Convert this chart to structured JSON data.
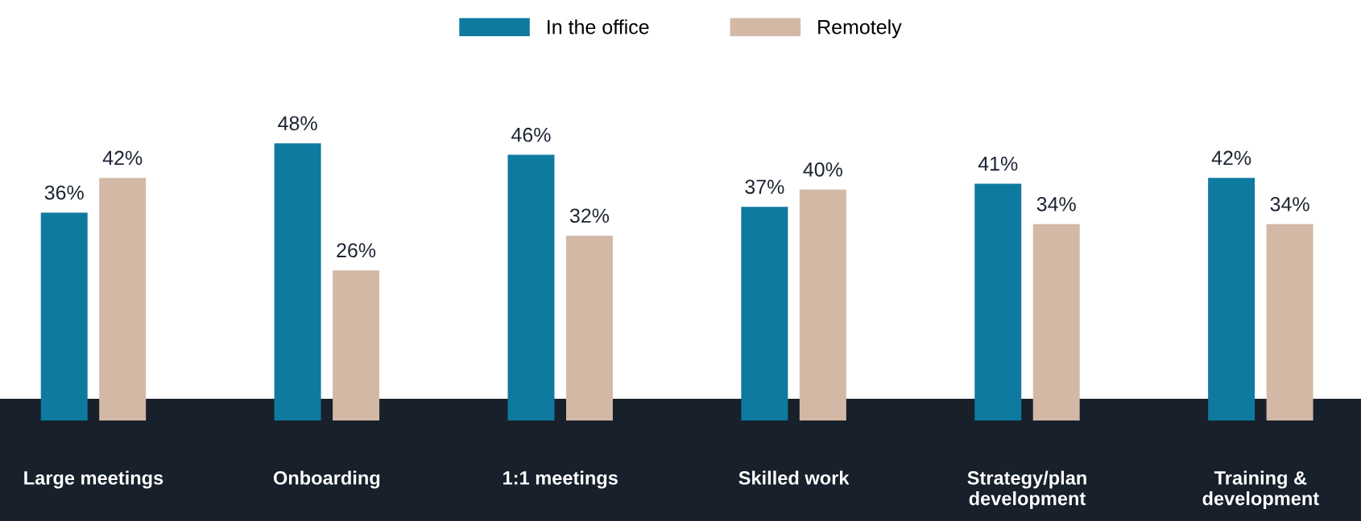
{
  "chart_data": {
    "type": "bar",
    "categories": [
      "Large meetings",
      "Onboarding",
      "1:1 meetings",
      "Skilled work",
      "Strategy/plan\ndevelopment",
      "Training &\ndevelopment"
    ],
    "series": [
      {
        "name": "In the office",
        "color": "#0e7aa0",
        "values": [
          36,
          48,
          46,
          37,
          41,
          42
        ],
        "value_labels": [
          "36%",
          "48%",
          "46%",
          "37%",
          "41%",
          "42%"
        ]
      },
      {
        "name": "Remotely",
        "color": "#d3b8a6",
        "values": [
          42,
          26,
          32,
          40,
          34,
          34
        ],
        "value_labels": [
          "42%",
          "26%",
          "32%",
          "40%",
          "34%",
          "34%"
        ]
      }
    ],
    "tick_labels": "x",
    "legend": "top",
    "grid": false
  }
}
